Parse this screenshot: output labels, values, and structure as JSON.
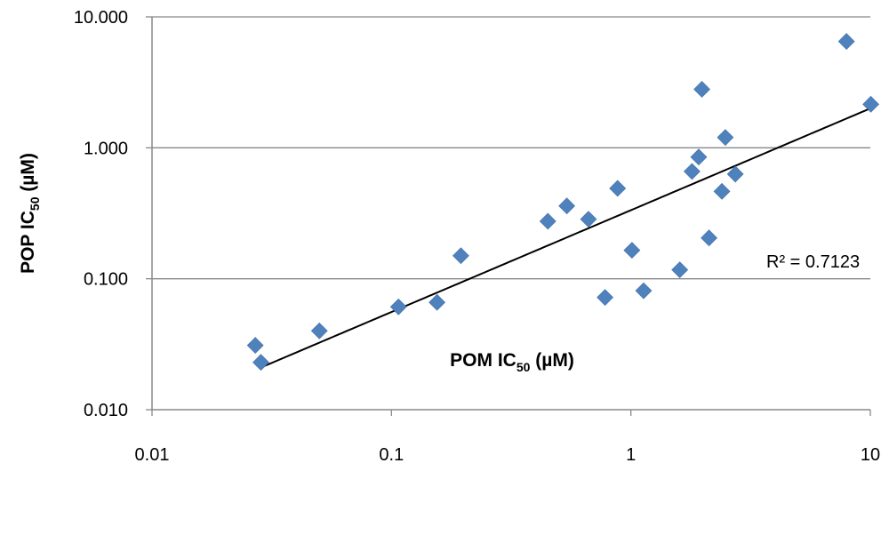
{
  "chart_data": {
    "type": "scatter",
    "title": "",
    "xlabel": {
      "main": "POM IC",
      "sub": "50",
      "unit": " (µM)"
    },
    "ylabel": {
      "main": "POP IC",
      "sub": "50",
      "unit": " (µM)"
    },
    "xscale": "log",
    "yscale": "log",
    "xlim": [
      0.01,
      10
    ],
    "ylim": [
      0.01,
      10
    ],
    "x_ticks": [
      0.01,
      0.1,
      1,
      10
    ],
    "x_tick_labels": [
      "0.01",
      "0.1",
      "1",
      "10"
    ],
    "y_ticks": [
      0.01,
      0.1,
      1,
      10
    ],
    "y_tick_labels": [
      "0.010",
      "0.100",
      "1.000",
      "10.000"
    ],
    "grid": "horizontal",
    "marker": "diamond",
    "marker_color": "#4F81BD",
    "trendline_color": "#000000",
    "series": [
      {
        "x": [
          0.027,
          0.0285,
          0.05,
          0.107,
          0.155,
          0.195,
          0.45,
          0.54,
          0.665,
          0.78,
          0.88,
          1.01,
          1.13,
          1.6,
          1.8,
          1.92,
          1.98,
          2.12,
          2.4,
          2.48,
          2.73,
          7.95,
          10.05
        ],
        "y": [
          0.031,
          0.023,
          0.04,
          0.061,
          0.066,
          0.15,
          0.275,
          0.36,
          0.285,
          0.072,
          0.49,
          0.165,
          0.081,
          0.117,
          0.66,
          0.85,
          2.8,
          0.205,
          0.465,
          1.2,
          0.63,
          6.5,
          2.15
        ]
      }
    ],
    "trendline": {
      "type": "power",
      "x_range": [
        0.0285,
        10
      ],
      "y_range": [
        0.021,
        2.0
      ]
    },
    "annotations": [
      {
        "text": "R² = 0.7123"
      }
    ]
  }
}
